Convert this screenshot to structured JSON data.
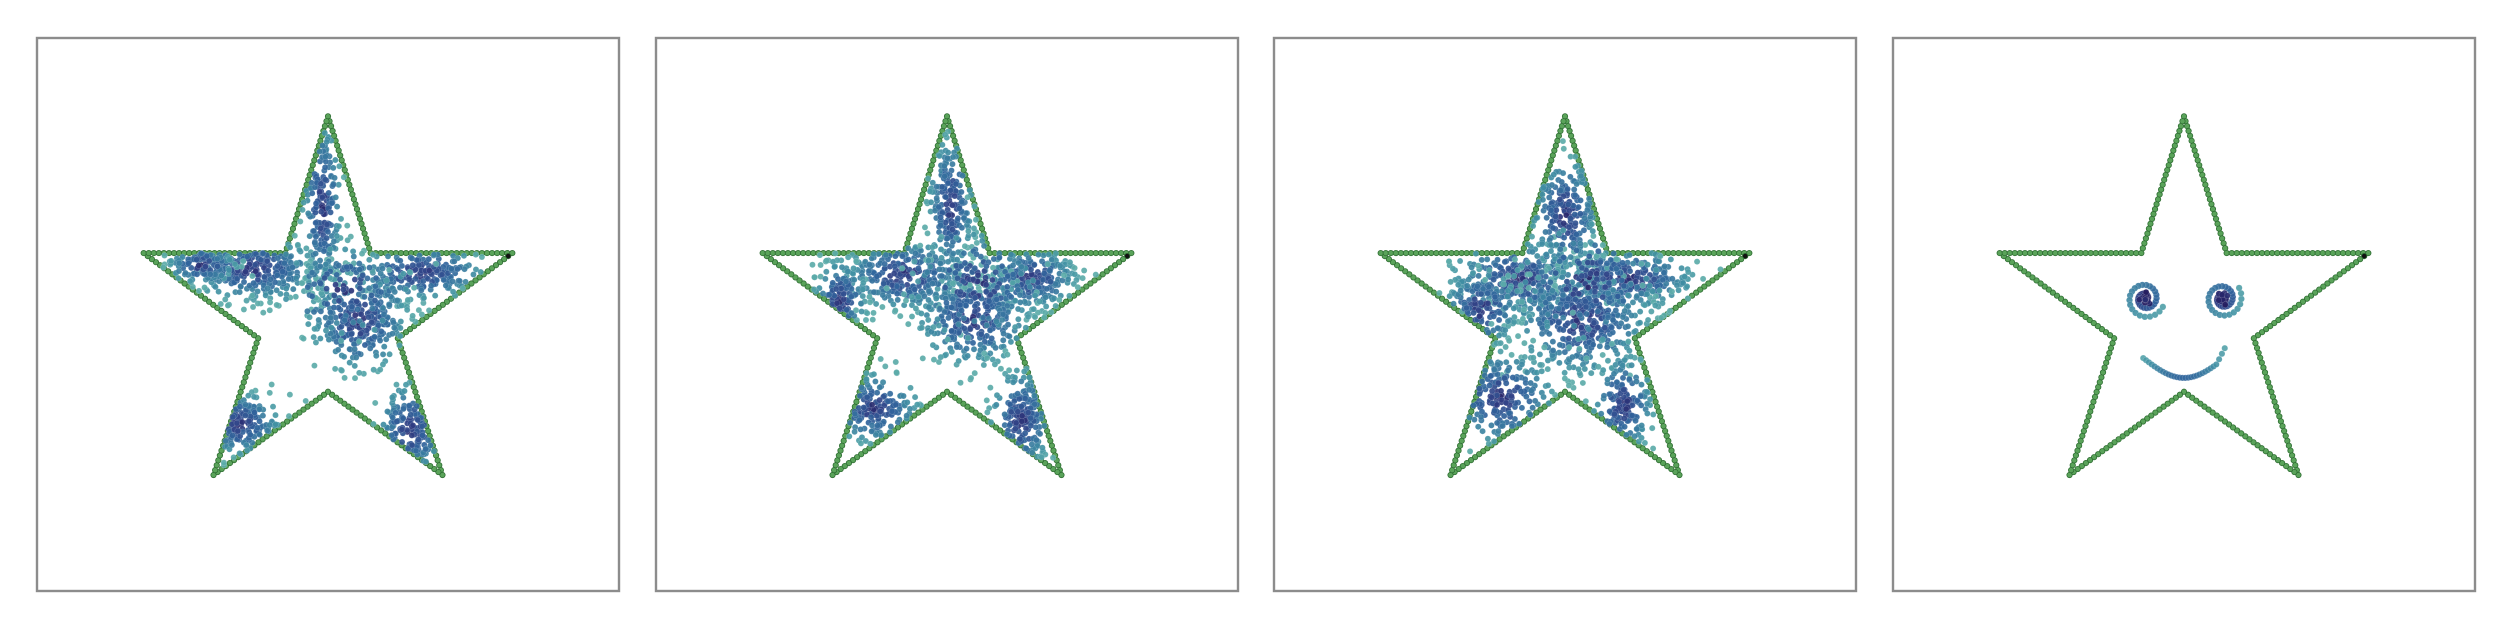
{
  "chart_data": [
    {
      "type": "scatter",
      "panel": 1,
      "title": "",
      "xlabel": "",
      "ylabel": "",
      "xlim": [
        -1.2,
        1.2
      ],
      "ylim": [
        -1.2,
        1.2
      ],
      "grid": false,
      "legend": "none",
      "outline": {
        "shape": "five-point-star",
        "vertices": [
          [
            0,
            1.0
          ],
          [
            0.22,
            0.31
          ],
          [
            0.95,
            0.31
          ],
          [
            0.36,
            -0.12
          ],
          [
            0.59,
            -0.81
          ],
          [
            0,
            -0.39
          ],
          [
            -0.59,
            -0.81
          ],
          [
            -0.36,
            -0.12
          ],
          [
            -0.95,
            0.31
          ],
          [
            -0.22,
            0.31
          ]
        ],
        "color": "#5aa35a",
        "edge_color": "#2f6e33"
      },
      "series": [
        {
          "color_map": "viridis-teal-to-indigo",
          "clusters": [
            {
              "center": [
                -0.38,
                0.23
              ],
              "spread": [
                0.17,
                0.08
              ],
              "weight": 0.2
            },
            {
              "center": [
                0.48,
                0.21
              ],
              "spread": [
                0.17,
                0.07
              ],
              "weight": 0.14
            },
            {
              "center": [
                0.16,
                -0.03
              ],
              "spread": [
                0.13,
                0.13
              ],
              "weight": 0.19
            },
            {
              "center": [
                -0.03,
                0.55
              ],
              "spread": [
                0.05,
                0.22
              ],
              "weight": 0.13
            },
            {
              "center": [
                -0.46,
                -0.55
              ],
              "spread": [
                0.11,
                0.08
              ],
              "weight": 0.1
            },
            {
              "center": [
                0.43,
                -0.58
              ],
              "spread": [
                0.09,
                0.12
              ],
              "weight": 0.09
            },
            {
              "center": [
                -0.65,
                0.25
              ],
              "spread": [
                0.09,
                0.05
              ],
              "weight": 0.07
            },
            {
              "center": [
                0.09,
                0.12
              ],
              "spread": [
                0.18,
                0.12
              ],
              "weight": 0.08
            }
          ],
          "count": 1500
        }
      ]
    },
    {
      "type": "scatter",
      "panel": 2,
      "title": "",
      "xlabel": "",
      "ylabel": "",
      "xlim": [
        -1.2,
        1.2
      ],
      "ylim": [
        -1.2,
        1.2
      ],
      "grid": false,
      "legend": "none",
      "outline": {
        "shape": "five-point-star",
        "vertices": [
          [
            0,
            1.0
          ],
          [
            0.22,
            0.31
          ],
          [
            0.95,
            0.31
          ],
          [
            0.36,
            -0.12
          ],
          [
            0.59,
            -0.81
          ],
          [
            0,
            -0.39
          ],
          [
            -0.59,
            -0.81
          ],
          [
            -0.36,
            -0.12
          ],
          [
            -0.95,
            0.31
          ],
          [
            -0.22,
            0.31
          ]
        ],
        "color": "#5aa35a",
        "edge_color": "#2f6e33"
      },
      "series": [
        {
          "color_map": "viridis-teal-to-indigo",
          "clusters": [
            {
              "center": [
                -0.22,
                0.2
              ],
              "spread": [
                0.16,
                0.09
              ],
              "weight": 0.17
            },
            {
              "center": [
                0.43,
                0.18
              ],
              "spread": [
                0.12,
                0.08
              ],
              "weight": 0.14
            },
            {
              "center": [
                0.14,
                -0.02
              ],
              "spread": [
                0.15,
                0.12
              ],
              "weight": 0.18
            },
            {
              "center": [
                0.02,
                0.55
              ],
              "spread": [
                0.06,
                0.18
              ],
              "weight": 0.12
            },
            {
              "center": [
                -0.38,
                -0.47
              ],
              "spread": [
                0.12,
                0.09
              ],
              "weight": 0.09
            },
            {
              "center": [
                0.38,
                -0.53
              ],
              "spread": [
                0.08,
                0.13
              ],
              "weight": 0.12
            },
            {
              "center": [
                -0.55,
                0.08
              ],
              "spread": [
                0.07,
                0.1
              ],
              "weight": 0.07
            },
            {
              "center": [
                0.15,
                0.15
              ],
              "spread": [
                0.18,
                0.14
              ],
              "weight": 0.11
            }
          ],
          "count": 1650
        }
      ]
    },
    {
      "type": "scatter",
      "panel": 3,
      "title": "",
      "xlabel": "",
      "ylabel": "",
      "xlim": [
        -1.2,
        1.2
      ],
      "ylim": [
        -1.2,
        1.2
      ],
      "grid": false,
      "legend": "none",
      "outline": {
        "shape": "five-point-star",
        "vertices": [
          [
            0,
            1.0
          ],
          [
            0.22,
            0.31
          ],
          [
            0.95,
            0.31
          ],
          [
            0.36,
            -0.12
          ],
          [
            0.59,
            -0.81
          ],
          [
            0,
            -0.39
          ],
          [
            -0.59,
            -0.81
          ],
          [
            -0.36,
            -0.12
          ],
          [
            -0.95,
            0.31
          ],
          [
            -0.22,
            0.31
          ]
        ],
        "color": "#5aa35a",
        "edge_color": "#2f6e33"
      },
      "series": [
        {
          "color_map": "viridis-teal-to-indigo",
          "clusters": [
            {
              "center": [
                -0.24,
                0.18
              ],
              "spread": [
                0.18,
                0.1
              ],
              "weight": 0.16
            },
            {
              "center": [
                0.33,
                0.18
              ],
              "spread": [
                0.17,
                0.08
              ],
              "weight": 0.16
            },
            {
              "center": [
                0.08,
                -0.03
              ],
              "spread": [
                0.18,
                0.14
              ],
              "weight": 0.22
            },
            {
              "center": [
                0.0,
                0.5
              ],
              "spread": [
                0.09,
                0.15
              ],
              "weight": 0.12
            },
            {
              "center": [
                -0.33,
                -0.42
              ],
              "spread": [
                0.14,
                0.12
              ],
              "weight": 0.1
            },
            {
              "center": [
                0.3,
                -0.45
              ],
              "spread": [
                0.08,
                0.13
              ],
              "weight": 0.09
            },
            {
              "center": [
                -0.43,
                0.03
              ],
              "spread": [
                0.1,
                0.1
              ],
              "weight": 0.07
            },
            {
              "center": [
                0.12,
                0.16
              ],
              "spread": [
                0.2,
                0.16
              ],
              "weight": 0.08
            }
          ],
          "count": 1800
        }
      ]
    },
    {
      "type": "scatter",
      "panel": 4,
      "title": "",
      "xlabel": "",
      "ylabel": "",
      "xlim": [
        -1.2,
        1.2
      ],
      "ylim": [
        -1.2,
        1.2
      ],
      "grid": false,
      "legend": "none",
      "outline": {
        "shape": "five-point-star",
        "vertices": [
          [
            0,
            1.0
          ],
          [
            0.22,
            0.31
          ],
          [
            0.95,
            0.31
          ],
          [
            0.36,
            -0.12
          ],
          [
            0.59,
            -0.81
          ],
          [
            0,
            -0.39
          ],
          [
            -0.59,
            -0.81
          ],
          [
            -0.36,
            -0.12
          ],
          [
            -0.95,
            0.31
          ],
          [
            -0.22,
            0.31
          ]
        ],
        "color": "#5aa35a",
        "edge_color": "#2f6e33"
      },
      "series": [
        {
          "name": "",
          "color_map": "viridis-teal-to-indigo",
          "features": [
            {
              "kind": "spiral-eye",
              "center": [
                -0.2,
                0.08
              ],
              "radius": 0.1
            },
            {
              "kind": "spiral-eye",
              "center": [
                0.2,
                0.08
              ],
              "radius": 0.1
            },
            {
              "kind": "smile",
              "center": [
                0.0,
                -0.22
              ],
              "width": 0.42,
              "depth": 0.1
            }
          ]
        }
      ]
    }
  ]
}
